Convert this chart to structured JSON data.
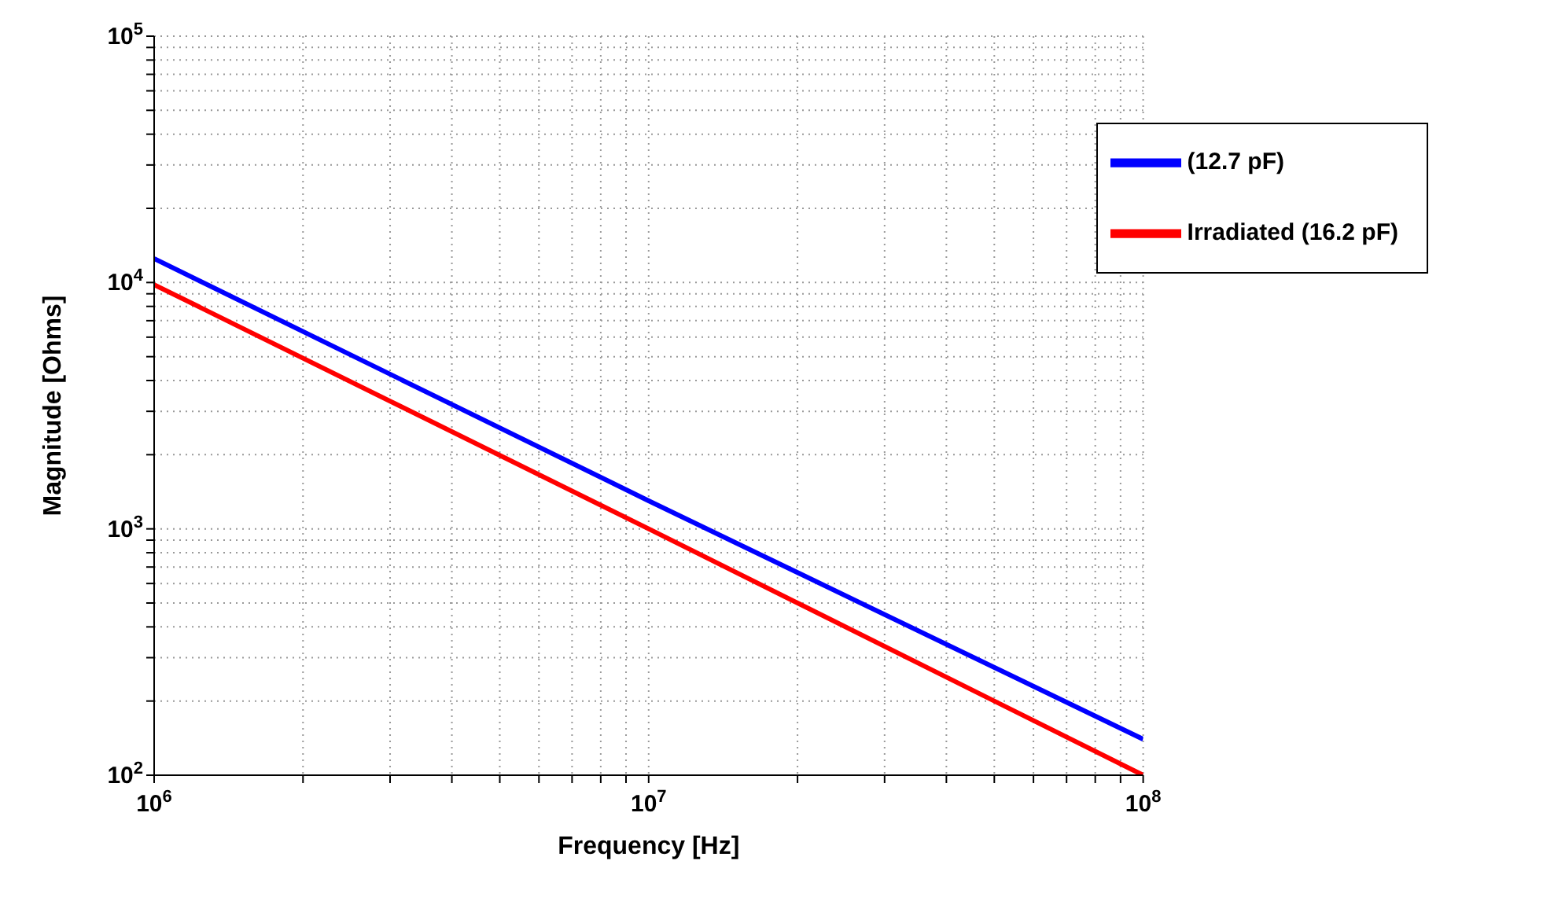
{
  "chart_data": {
    "type": "line",
    "xlabel": "Frequency [Hz]",
    "ylabel": "Magnitude [Ohms]",
    "log": "xy",
    "grid": true,
    "legend": "top right",
    "line_style": "solid",
    "marker": "none",
    "xlim": [
      1000000,
      100000000
    ],
    "xticks": [
      {
        "value": 1000000,
        "label": "10$^{6}$"
      },
      {
        "value": 2000000,
        "label": null
      },
      {
        "value": 3000000,
        "label": null
      },
      {
        "value": 4000000,
        "label": null
      },
      {
        "value": 5000000,
        "label": null
      },
      {
        "value": 6000000,
        "label": null
      },
      {
        "value": 7000000,
        "label": null
      },
      {
        "value": 8000000,
        "label": null
      },
      {
        "value": 9000000,
        "label": null
      },
      {
        "value": 10000000,
        "label": "10$^{7}$"
      },
      {
        "value": 20000000,
        "label": null
      },
      {
        "value": 30000000,
        "label": null
      },
      {
        "value": 40000000,
        "label": null
      },
      {
        "value": 50000000,
        "label": null
      },
      {
        "value": 60000000,
        "label": null
      },
      {
        "value": 70000000,
        "label": null
      },
      {
        "value": 80000000,
        "label": null
      },
      {
        "value": 90000000,
        "label": null
      },
      {
        "value": 100000000,
        "label": "10$^{8}$"
      }
    ],
    "ylim": [
      100,
      100000
    ],
    "yticks": [
      {
        "value": 100,
        "label": "10$^{2}$"
      },
      {
        "value": 200,
        "label": null
      },
      {
        "value": 300,
        "label": null
      },
      {
        "value": 400,
        "label": null
      },
      {
        "value": 500,
        "label": null
      },
      {
        "value": 600,
        "label": null
      },
      {
        "value": 700,
        "label": null
      },
      {
        "value": 800,
        "label": null
      },
      {
        "value": 900,
        "label": null
      },
      {
        "value": 1000,
        "label": "10$^{3}$"
      },
      {
        "value": 2000,
        "label": null
      },
      {
        "value": 3000,
        "label": null
      },
      {
        "value": 4000,
        "label": null
      },
      {
        "value": 5000,
        "label": null
      },
      {
        "value": 6000,
        "label": null
      },
      {
        "value": 7000,
        "label": null
      },
      {
        "value": 8000,
        "label": null
      },
      {
        "value": 9000,
        "label": null
      },
      {
        "value": 10000,
        "label": "10$^{4}$"
      },
      {
        "value": 20000,
        "label": null
      },
      {
        "value": 30000,
        "label": null
      },
      {
        "value": 40000,
        "label": null
      },
      {
        "value": 50000,
        "label": null
      },
      {
        "value": 60000,
        "label": null
      },
      {
        "value": 70000,
        "label": null
      },
      {
        "value": 80000,
        "label": null
      },
      {
        "value": 90000,
        "label": null
      },
      {
        "value": 100000,
        "label": "10$^{5}$"
      }
    ],
    "series": [
      {
        "name": "(12.7 pF)",
        "color": "#0000ff",
        "x": [
          1000000,
          10000000,
          100000000
        ],
        "values": [
          12500,
          1300,
          140
        ]
      },
      {
        "name": "Irradiated (16.2 pF)",
        "color": "#ff0000",
        "x": [
          1000000,
          10000000,
          100000000
        ],
        "values": [
          9800,
          1000,
          100
        ]
      }
    ]
  }
}
